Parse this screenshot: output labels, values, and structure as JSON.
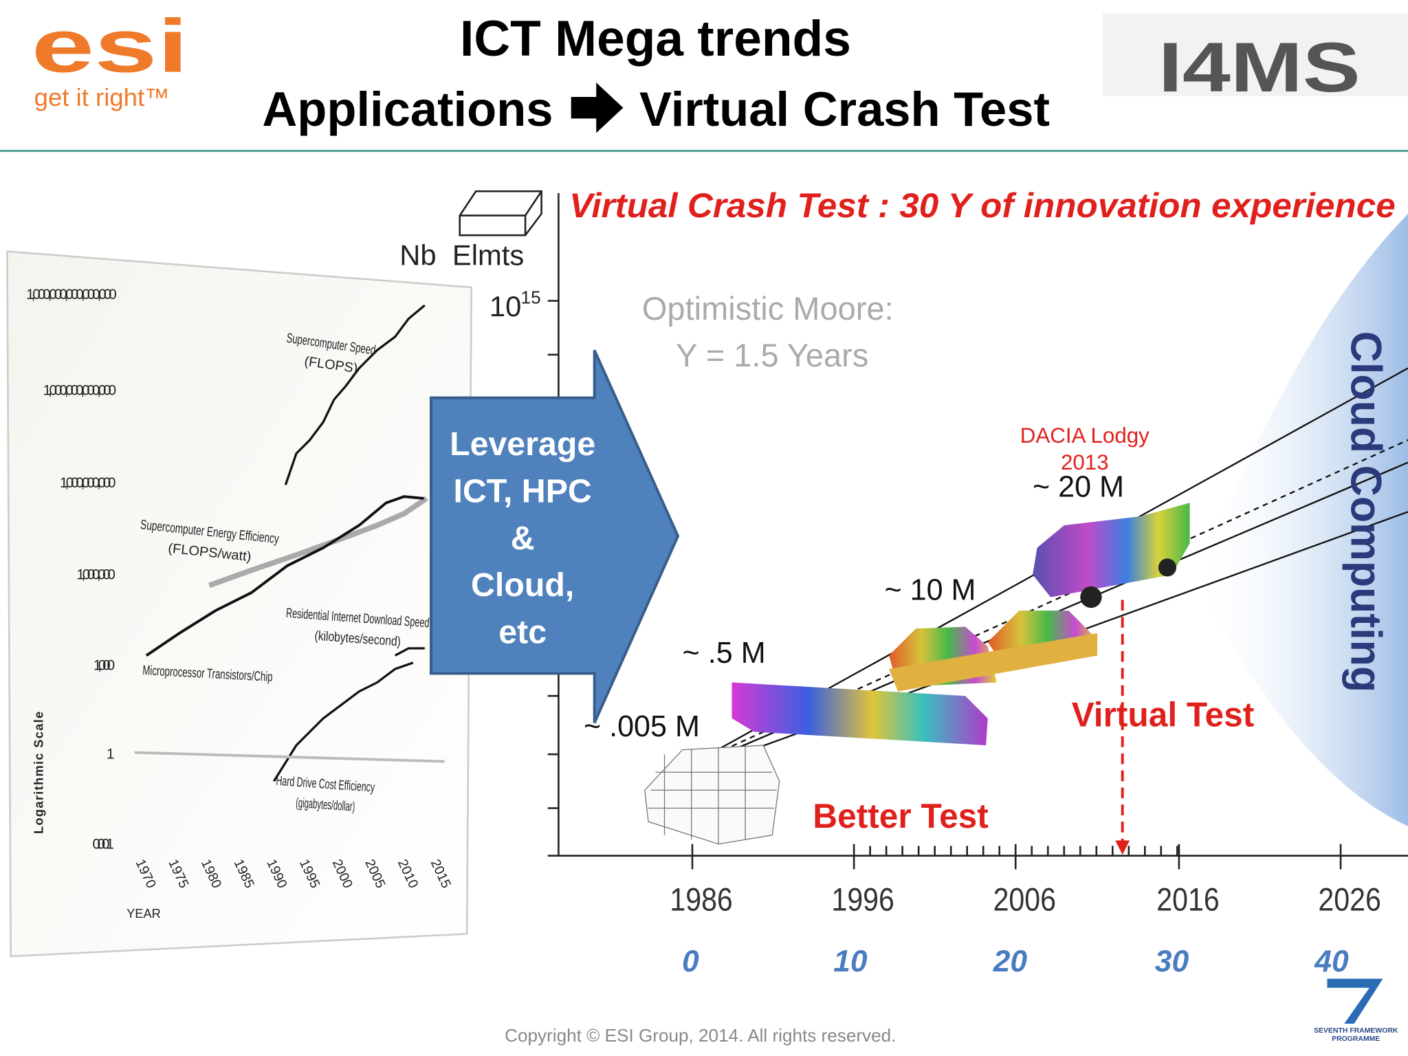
{
  "header": {
    "logo": "esi",
    "tagline": "get it right™",
    "title": "ICT Mega trends",
    "subtitle_left": "Applications",
    "subtitle_right": "Virtual Crash Test",
    "partner_logo": "I4MS"
  },
  "left_figure": {
    "yticks": [
      "1,000,000,000,000,000",
      "1,000,000,000,000",
      "1,000,000,000",
      "1,000,000",
      "1,000",
      "1",
      "0.001"
    ],
    "xticks": [
      "1970",
      "1975",
      "1980",
      "1985",
      "1990",
      "1995",
      "2000",
      "2005",
      "2010",
      "2015"
    ],
    "x_label": "YEAR",
    "y_label": "Logarithmic Scale",
    "series_labels": [
      {
        "lines": [
          "Supercomputer Speed",
          "(FLOPS)"
        ]
      },
      {
        "lines": [
          "Supercomputer Energy Efficiency",
          "(FLOPS/watt)"
        ]
      },
      {
        "lines": [
          "Residential Internet Download Speed",
          "(kilobytes/second)"
        ]
      },
      {
        "lines": [
          "Microprocessor Transistors/Chip"
        ]
      },
      {
        "lines": [
          "Hard Drive Cost Efficiency",
          "(gigabytes/dollar)"
        ]
      }
    ]
  },
  "arrow": {
    "lines": [
      "Leverage",
      "ICT, HPC",
      "&",
      "Cloud,",
      "etc"
    ]
  },
  "right_chart": {
    "title": "Virtual Crash Test : 30 Y of innovation experience",
    "y_label": "Nb  Elmts",
    "y_top_base": "10",
    "y_top_exp": "15",
    "moore": [
      "Optimistic Moore:",
      "Y = 1.5 Years"
    ],
    "annotations": [
      "~ .005 M",
      "~ .5 M",
      "~ 10 M",
      "~ 20 M"
    ],
    "car_label": [
      "DACIA Lodgy",
      "2013"
    ],
    "virtual_test": "Virtual Test",
    "better_test": "Better Test",
    "cloud": "Cloud Computing",
    "years": [
      "1986",
      "1996",
      "2006",
      "2016",
      "2026"
    ],
    "offsets": [
      "0",
      "10",
      "20",
      "30",
      "40"
    ]
  },
  "footer": {
    "copyright": "Copyright © ESI Group, 2014. All rights reserved.",
    "programme": [
      "SEVENTH FRAMEWORK",
      "PROGRAMME"
    ]
  }
}
